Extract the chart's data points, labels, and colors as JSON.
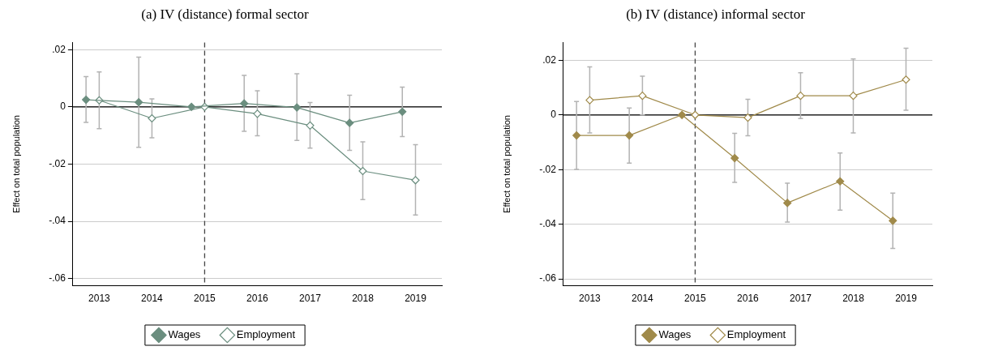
{
  "chart_data": [
    {
      "type": "line",
      "title": "(a) IV (distance) formal sector",
      "ylabel": "Effect on total population",
      "xlim": [
        2012.5,
        2019.5
      ],
      "xticks": [
        2013,
        2014,
        2015,
        2016,
        2017,
        2018,
        2019
      ],
      "ylim": [
        -0.0625,
        0.0225
      ],
      "yticks": [
        {
          "value": 0.02,
          "label": ".02"
        },
        0,
        {
          "value": -0.02,
          "label": "-.02"
        },
        {
          "value": -0.04,
          "label": "-.04"
        },
        {
          "value": -0.06,
          "label": "-.06"
        }
      ],
      "grid": "y",
      "legend": "bottom",
      "marker": "diamond",
      "line_style": "solid",
      "ref_lines": [
        {
          "axis": "y",
          "value": 0,
          "color": "#000000",
          "line_style": "solid"
        },
        {
          "axis": "x",
          "value": 2015,
          "color": "#444444",
          "line_style": "dashed"
        }
      ],
      "series": [
        {
          "name": "Wages",
          "color": "#6b8e7f",
          "x": [
            2012.75,
            2013.75,
            2014.75,
            2015.75,
            2016.75,
            2017.75,
            2018.75
          ],
          "values": [
            0.0025,
            0.0016,
            0,
            0.0012,
            -0.0002,
            -0.0056,
            -0.0017
          ],
          "errors": [
            [
              -0.0054,
              0.0106
            ],
            [
              -0.0141,
              0.0174
            ],
            null,
            [
              -0.0085,
              0.011
            ],
            [
              -0.0117,
              0.0116
            ],
            [
              -0.0152,
              0.0041
            ],
            [
              -0.0104,
              0.0069
            ]
          ]
        },
        {
          "name": "Employment",
          "color": "#6b8e7f",
          "x": [
            2013,
            2014,
            2015,
            2016,
            2017,
            2018,
            2019
          ],
          "values": [
            0.0023,
            -0.004,
            0,
            -0.0024,
            -0.0065,
            -0.0224,
            -0.0256
          ],
          "errors": [
            [
              -0.0076,
              0.0122
            ],
            [
              -0.0108,
              0.0028
            ],
            null,
            [
              -0.0101,
              0.0056
            ],
            [
              -0.0144,
              0.0015
            ],
            [
              -0.0324,
              -0.0122
            ],
            [
              -0.0378,
              -0.0132
            ]
          ]
        }
      ]
    },
    {
      "type": "line",
      "title": "(b) IV (distance) informal sector",
      "ylabel": "Effect on total population",
      "xlim": [
        2012.5,
        2019.5
      ],
      "xticks": [
        2013,
        2014,
        2015,
        2016,
        2017,
        2018,
        2019
      ],
      "ylim": [
        -0.0625,
        0.0265
      ],
      "yticks": [
        {
          "value": 0.02,
          "label": ".02"
        },
        0,
        {
          "value": -0.02,
          "label": "-.02"
        },
        {
          "value": -0.04,
          "label": "-.04"
        },
        {
          "value": -0.06,
          "label": "-.06"
        }
      ],
      "grid": "y",
      "legend": "bottom",
      "marker": "diamond",
      "line_style": "solid",
      "ref_lines": [
        {
          "axis": "y",
          "value": 0,
          "color": "#000000",
          "line_style": "solid"
        },
        {
          "axis": "x",
          "value": 2015,
          "color": "#444444",
          "line_style": "dashed"
        }
      ],
      "series": [
        {
          "name": "Wages",
          "color": "#a08a4a",
          "x": [
            2012.75,
            2013.75,
            2014.75,
            2015.75,
            2016.75,
            2017.75,
            2018.75
          ],
          "values": [
            -0.0075,
            -0.0075,
            0,
            -0.0158,
            -0.0322,
            -0.0243,
            -0.0387
          ],
          "errors": [
            [
              -0.0199,
              0.0049
            ],
            [
              -0.0176,
              0.0025
            ],
            null,
            [
              -0.0247,
              -0.0067
            ],
            [
              -0.0392,
              -0.025
            ],
            [
              -0.0348,
              -0.0139
            ],
            [
              -0.0488,
              -0.0286
            ]
          ]
        },
        {
          "name": "Employment",
          "color": "#a08a4a",
          "x": [
            2013,
            2014,
            2015,
            2016,
            2017,
            2018,
            2019
          ],
          "values": [
            0.0054,
            0.007,
            0,
            -0.001,
            0.007,
            0.007,
            0.0129
          ],
          "errors": [
            [
              -0.0066,
              0.0176
            ],
            [
              0,
              0.0142
            ],
            null,
            [
              -0.0076,
              0.0057
            ],
            [
              -0.0013,
              0.0154
            ],
            [
              -0.0066,
              0.0205
            ],
            [
              0.0017,
              0.0244
            ]
          ]
        }
      ]
    }
  ]
}
